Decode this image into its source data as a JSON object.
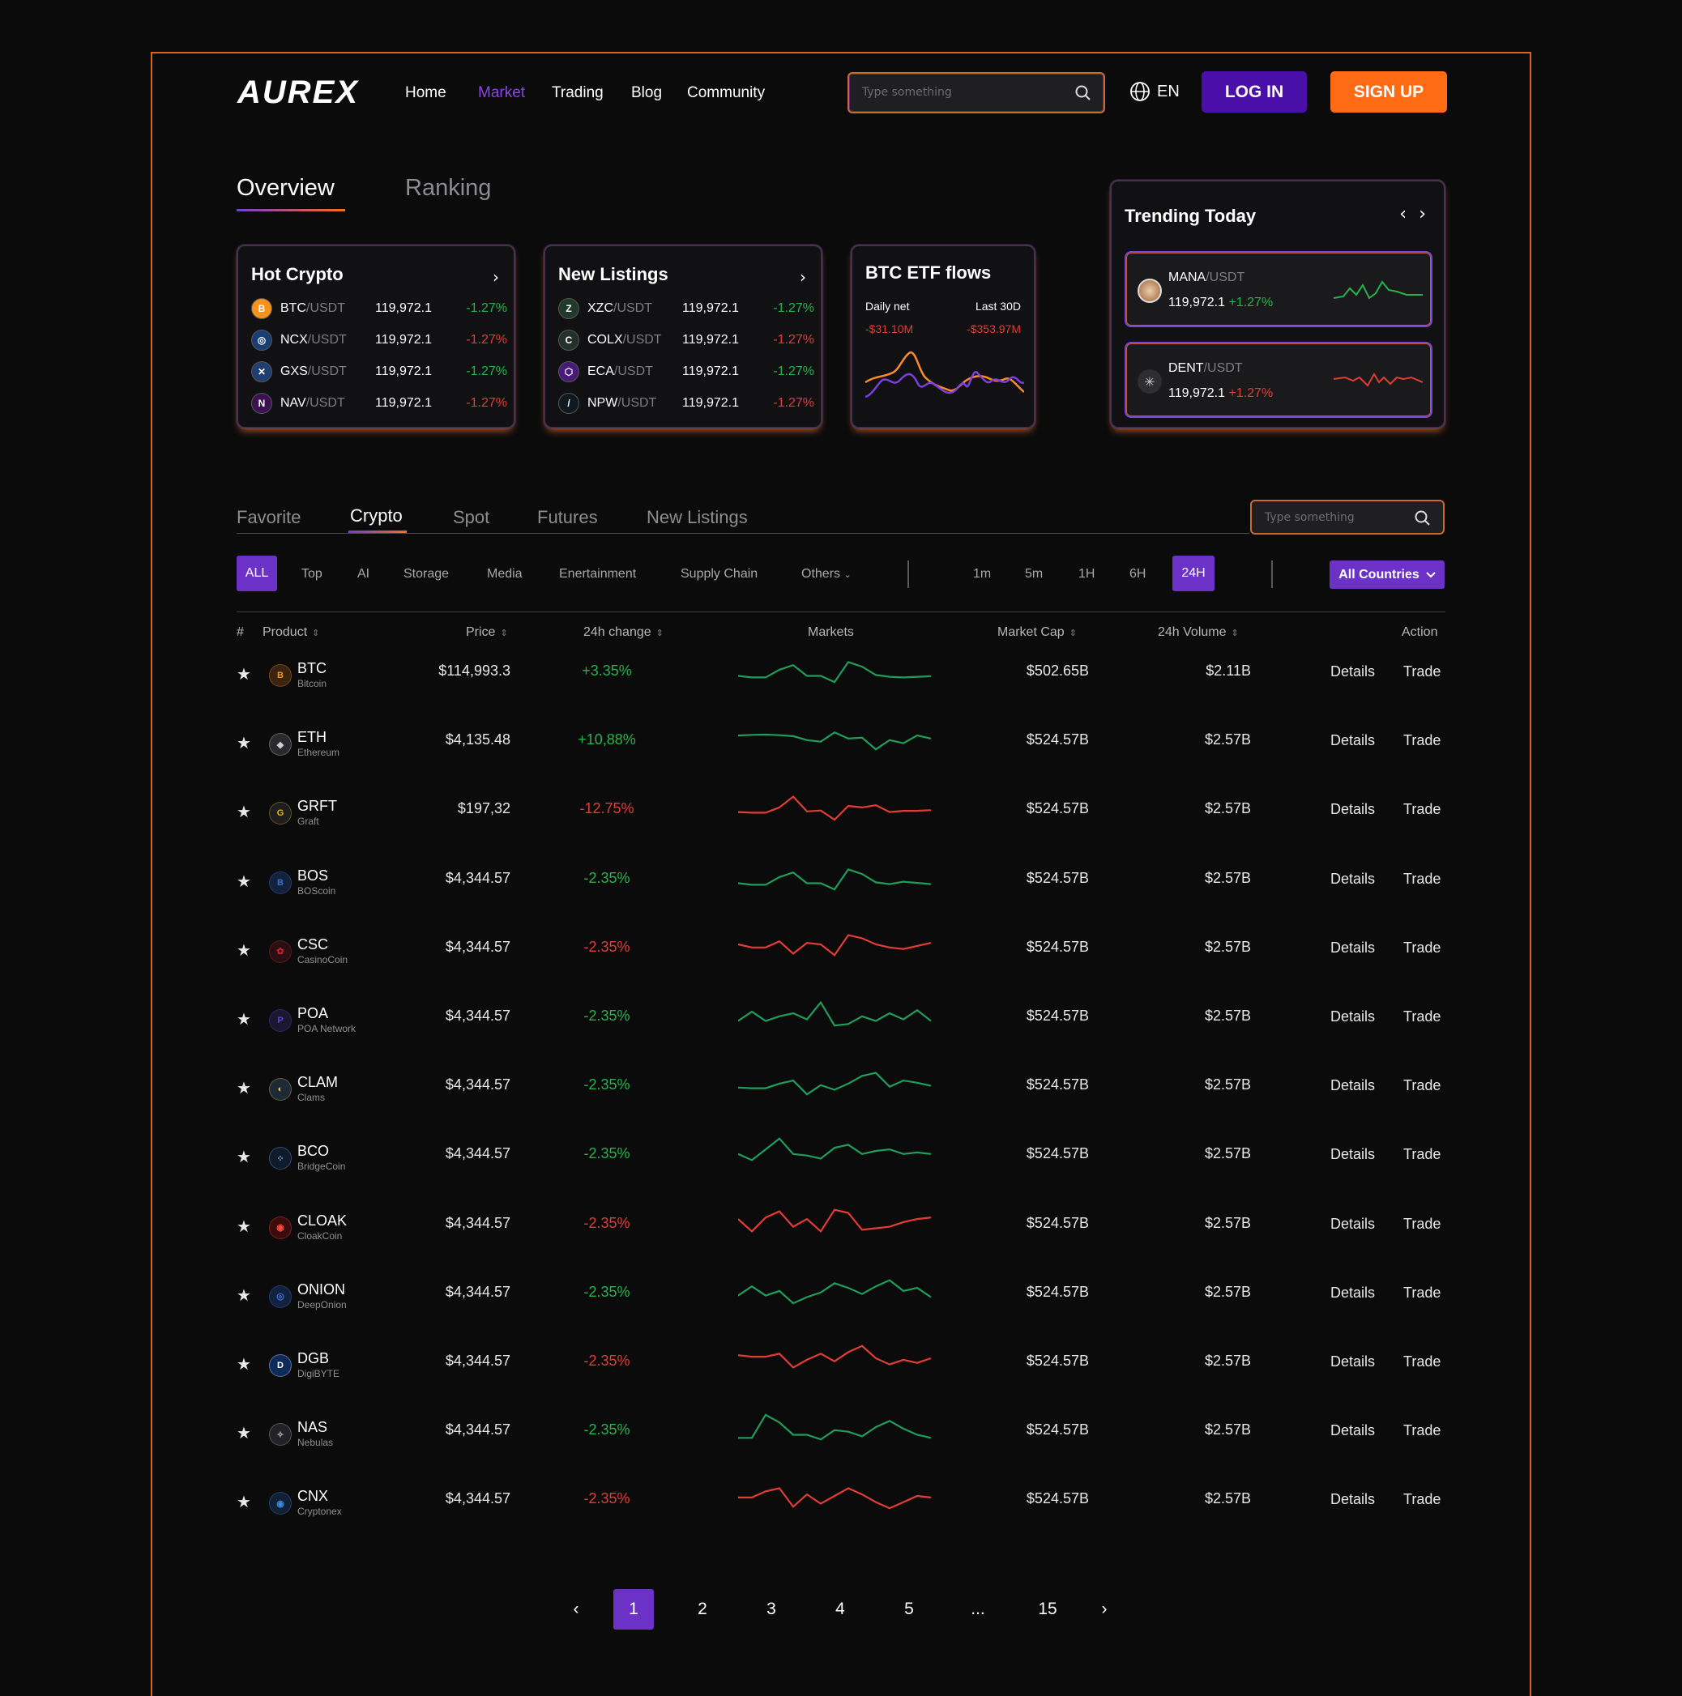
{
  "header": {
    "logo": "AUREX",
    "nav": [
      "Home",
      "Market",
      "Trading",
      "Blog",
      "Community"
    ],
    "active_nav": "Market",
    "search_placeholder": "Type something",
    "lang": "EN",
    "login": "LOG IN",
    "signup": "SIGN UP"
  },
  "overview_tabs": [
    "Overview",
    "Ranking"
  ],
  "hot_crypto": {
    "title": "Hot Crypto",
    "rows": [
      {
        "base": "BTC",
        "quote": "/USDT",
        "price": "119,972.1",
        "change": "-1.27%",
        "dir": "g",
        "icon_bg": "#f7931a",
        "icon": "B"
      },
      {
        "base": "NCX",
        "quote": "/USDT",
        "price": "119,972.1",
        "change": "-1.27%",
        "dir": "r",
        "icon_bg": "#1b3d75",
        "icon": "◎"
      },
      {
        "base": "GXS",
        "quote": "/USDT",
        "price": "119,972.1",
        "change": "-1.27%",
        "dir": "g",
        "icon_bg": "#1f3f72",
        "icon": "✕"
      },
      {
        "base": "NAV",
        "quote": "/USDT",
        "price": "119,972.1",
        "change": "-1.27%",
        "dir": "r",
        "icon_bg": "#3b1150",
        "icon": "N"
      }
    ]
  },
  "new_listings": {
    "title": "New Listings",
    "rows": [
      {
        "base": "XZC",
        "quote": "/USDT",
        "price": "119,972.1",
        "change": "-1.27%",
        "dir": "g",
        "icon_bg": "#1f3a2a",
        "icon": "Z"
      },
      {
        "base": "COLX",
        "quote": "/USDT",
        "price": "119,972.1",
        "change": "-1.27%",
        "dir": "r",
        "icon_bg": "#24302a",
        "icon": "C"
      },
      {
        "base": "ECA",
        "quote": "/USDT",
        "price": "119,972.1",
        "change": "-1.27%",
        "dir": "g",
        "icon_bg": "#4a1a78",
        "icon": "⬡"
      },
      {
        "base": "NPW",
        "quote": "/USDT",
        "price": "119,972.1",
        "change": "-1.27%",
        "dir": "r",
        "icon_bg": "#101820",
        "icon": "/"
      }
    ]
  },
  "etf": {
    "title": "BTC ETF flows",
    "daily_label": "Daily net",
    "daily_value": "-$31.10M",
    "last_label": "Last 30D",
    "last_value": "-$353.97M"
  },
  "trending": {
    "title": "Trending Today",
    "items": [
      {
        "base": "MANA",
        "quote": "/USDT",
        "price": "119,972.1",
        "change": "+1.27%",
        "dir": "g"
      },
      {
        "base": "DENT",
        "quote": "/USDT",
        "price": "119,972.1",
        "change": "+1.27%",
        "dir": "r"
      }
    ]
  },
  "market_tabs": [
    "Favorite",
    "Crypto",
    "Spot",
    "Futures",
    "New Listings"
  ],
  "market_search_placeholder": "Type something",
  "categories": [
    "ALL",
    "Top",
    "AI",
    "Storage",
    "Media",
    "Enertainment",
    "Supply Chain",
    "Others"
  ],
  "timeframes": [
    "1m",
    "5m",
    "1H",
    "6H",
    "24H"
  ],
  "countries": "All Countries",
  "columns": [
    "#",
    "Product",
    "Price",
    "24h change",
    "Markets",
    "Market Cap",
    "24h Volume",
    "Action"
  ],
  "rows": [
    {
      "sym": "BTC",
      "name": "Bitcoin",
      "price": "$114,993.3",
      "change": "+3.35%",
      "dir": "g",
      "cap": "$502.65B",
      "vol": "$2.11B",
      "icon_bg": "#3a2410",
      "icon_fg": "#f7931a",
      "icon": "B",
      "spark": [
        0.75,
        0.8,
        0.8,
        0.55,
        0.4,
        0.75,
        0.75,
        0.95,
        0.3,
        0.45,
        0.72,
        0.78,
        0.8,
        0.78,
        0.76
      ]
    },
    {
      "sym": "ETH",
      "name": "Ethereum",
      "price": "$4,135.48",
      "change": "+10,88%",
      "dir": "g",
      "cap": "$524.57B",
      "vol": "$2.57B",
      "icon_bg": "#2a2a2e",
      "icon_fg": "#cfcfcf",
      "icon": "◆",
      "spark": [
        0.45,
        0.43,
        0.42,
        0.44,
        0.47,
        0.6,
        0.65,
        0.35,
        0.55,
        0.52,
        0.9,
        0.6,
        0.7,
        0.45,
        0.55
      ]
    },
    {
      "sym": "GRFT",
      "name": "Graft",
      "price": "$197,32",
      "change": "-12.75%",
      "dir": "r",
      "cap": "$524.57B",
      "vol": "$2.57B",
      "icon_bg": "#1e1e1e",
      "icon_fg": "#e8b820",
      "icon": "G",
      "spark": [
        0.7,
        0.72,
        0.72,
        0.55,
        0.2,
        0.68,
        0.65,
        0.95,
        0.5,
        0.55,
        0.48,
        0.7,
        0.66,
        0.66,
        0.64
      ]
    },
    {
      "sym": "BOS",
      "name": "BOScoin",
      "price": "$4,344.57",
      "change": "-2.35%",
      "dir": "g",
      "cap": "$524.57B",
      "vol": "$2.57B",
      "icon_bg": "#14213a",
      "icon_fg": "#3c6bd6",
      "icon": "B",
      "spark": [
        0.75,
        0.8,
        0.8,
        0.55,
        0.4,
        0.75,
        0.75,
        0.95,
        0.3,
        0.45,
        0.72,
        0.78,
        0.7,
        0.74,
        0.78
      ]
    },
    {
      "sym": "CSC",
      "name": "CasinoCoin",
      "price": "$4,344.57",
      "change": "-2.35%",
      "dir": "r",
      "cap": "$524.57B",
      "vol": "$2.57B",
      "icon_bg": "#2a0f12",
      "icon_fg": "#c02632",
      "icon": "✿",
      "spark": [
        0.5,
        0.6,
        0.6,
        0.4,
        0.8,
        0.45,
        0.5,
        0.85,
        0.2,
        0.3,
        0.5,
        0.6,
        0.65,
        0.55,
        0.45
      ]
    },
    {
      "sym": "POA",
      "name": "POA Network",
      "price": "$4,344.57",
      "change": "-2.35%",
      "dir": "g",
      "cap": "$524.57B",
      "vol": "$2.57B",
      "icon_bg": "#1b1730",
      "icon_fg": "#5a45c8",
      "icon": "P",
      "spark": [
        0.75,
        0.45,
        0.75,
        0.6,
        0.5,
        0.7,
        0.15,
        0.9,
        0.85,
        0.6,
        0.75,
        0.5,
        0.7,
        0.4,
        0.75
      ]
    },
    {
      "sym": "CLAM",
      "name": "Clams",
      "price": "$4,344.57",
      "change": "-2.35%",
      "dir": "g",
      "cap": "$524.57B",
      "vol": "$2.57B",
      "icon_bg": "#1e2a33",
      "icon_fg": "#e6c24a",
      "icon": "◐",
      "spark": [
        0.68,
        0.7,
        0.7,
        0.55,
        0.45,
        0.9,
        0.6,
        0.75,
        0.55,
        0.3,
        0.2,
        0.65,
        0.45,
        0.52,
        0.62
      ]
    },
    {
      "sym": "BCO",
      "name": "BridgeCoin",
      "price": "$4,344.57",
      "change": "-2.35%",
      "dir": "g",
      "cap": "$524.57B",
      "vol": "$2.57B",
      "icon_bg": "#0f1a2a",
      "icon_fg": "#7db2ff",
      "icon": "⁘",
      "spark": [
        0.6,
        0.8,
        0.45,
        0.1,
        0.6,
        0.65,
        0.75,
        0.4,
        0.3,
        0.6,
        0.5,
        0.45,
        0.6,
        0.55,
        0.6
      ]
    },
    {
      "sym": "CLOAK",
      "name": "CloakCoin",
      "price": "$4,344.57",
      "change": "-2.35%",
      "dir": "r",
      "cap": "$524.57B",
      "vol": "$2.57B",
      "icon_bg": "#3a0c0c",
      "icon_fg": "#ff4a3a",
      "icon": "◉",
      "spark": [
        0.45,
        0.85,
        0.4,
        0.2,
        0.7,
        0.45,
        0.85,
        0.15,
        0.25,
        0.8,
        0.75,
        0.7,
        0.55,
        0.45,
        0.4
      ]
    },
    {
      "sym": "ONION",
      "name": "DeepOnion",
      "price": "$4,344.57",
      "change": "-2.35%",
      "dir": "g",
      "cap": "$524.57B",
      "vol": "$2.57B",
      "icon_bg": "#13213d",
      "icon_fg": "#3a74e0",
      "icon": "◎",
      "spark": [
        0.7,
        0.4,
        0.7,
        0.55,
        0.95,
        0.75,
        0.6,
        0.3,
        0.45,
        0.65,
        0.4,
        0.2,
        0.55,
        0.45,
        0.75
      ]
    },
    {
      "sym": "DGB",
      "name": "DigiBYTE",
      "price": "$4,344.57",
      "change": "-2.35%",
      "dir": "r",
      "cap": "$524.57B",
      "vol": "$2.57B",
      "icon_bg": "#0e2a5a",
      "icon_fg": "#ffffff",
      "icon": "D",
      "spark": [
        0.4,
        0.45,
        0.45,
        0.35,
        0.8,
        0.55,
        0.35,
        0.6,
        0.3,
        0.1,
        0.5,
        0.7,
        0.55,
        0.65,
        0.5
      ]
    },
    {
      "sym": "NAS",
      "name": "Nebulas",
      "price": "$4,344.57",
      "change": "-2.35%",
      "dir": "g",
      "cap": "$524.57B",
      "vol": "$2.57B",
      "icon_bg": "#222226",
      "icon_fg": "#b8b8c0",
      "icon": "✧",
      "spark": [
        0.85,
        0.85,
        0.1,
        0.35,
        0.75,
        0.75,
        0.9,
        0.6,
        0.65,
        0.8,
        0.5,
        0.3,
        0.55,
        0.75,
        0.85
      ]
    },
    {
      "sym": "CNX",
      "name": "Cryptonex",
      "price": "$4,344.57",
      "change": "-2.35%",
      "dir": "r",
      "cap": "$524.57B",
      "vol": "$2.57B",
      "icon_bg": "#102035",
      "icon_fg": "#3b8ad8",
      "icon": "◉",
      "spark": [
        0.55,
        0.55,
        0.35,
        0.25,
        0.85,
        0.45,
        0.75,
        0.5,
        0.25,
        0.45,
        0.7,
        0.9,
        0.7,
        0.5,
        0.55
      ]
    }
  ],
  "pagination": [
    "‹",
    "1",
    "2",
    "3",
    "4",
    "5",
    "...",
    "15",
    "›"
  ],
  "colors": {
    "accent": "#6c32c7",
    "brand": "#ff6a14",
    "green": "#25b44b",
    "red": "#e23c35",
    "spark_green": "#1e9e5a"
  }
}
